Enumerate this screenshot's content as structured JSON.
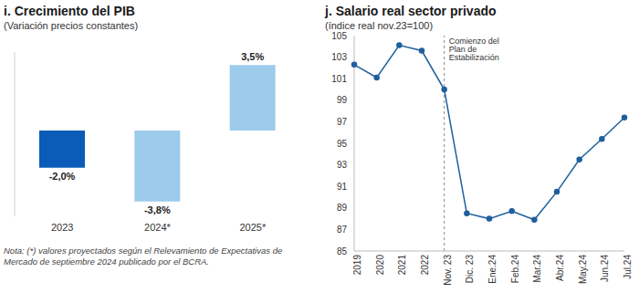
{
  "chart_data": [
    {
      "type": "bar",
      "title": "i. Crecimiento del PIB",
      "subtitle": "(Variación precios constantes)",
      "categories": [
        "2023",
        "2024*",
        "2025*"
      ],
      "values": [
        -2.0,
        -3.8,
        3.5
      ],
      "value_labels": [
        "-2,0%",
        "-3,8%",
        "3,5%"
      ],
      "colors": [
        "#0a5cb8",
        "#9dcbec",
        "#9dcbec"
      ],
      "ylim": [
        -4.6,
        4.2
      ],
      "data_labels": true,
      "tick_labels": "x",
      "grid": false,
      "note": "Nota: (*) valores proyectados según el Relevamiento de Expectativas de Mercado de septiembre 2024 publicado por el BCRA."
    },
    {
      "type": "line",
      "title": "j. Salario real sector privado",
      "subtitle": "(índice real nov.23=100)",
      "categories": [
        "2019",
        "2020",
        "2021",
        "2022",
        "Nov. 23",
        "Dic. 23",
        "Ene.24",
        "Feb.24",
        "Mar.24",
        "Abr.24",
        "May.24",
        "Jun.24",
        "Jul.24"
      ],
      "values": [
        102.3,
        101.1,
        104.1,
        103.6,
        100,
        88.5,
        88.0,
        88.7,
        87.9,
        90.5,
        93.5,
        95.4,
        97.4
      ],
      "color": "#1f5f9e",
      "marker": "circle",
      "line_style": "solid",
      "ylim": [
        85,
        105
      ],
      "yticks": [
        85,
        87,
        89,
        91,
        93,
        95,
        97,
        99,
        101,
        103,
        105
      ],
      "grid": false,
      "annotations": [
        {
          "text": "Comienzo del Plan de Estabilización",
          "x": "Nov. 23"
        }
      ]
    }
  ]
}
